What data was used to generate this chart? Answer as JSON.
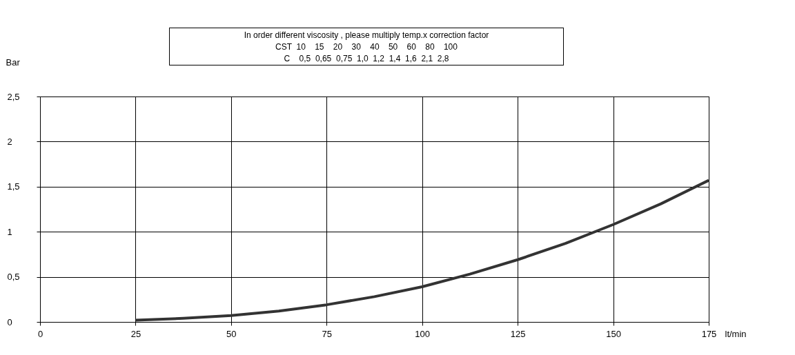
{
  "chart_data": {
    "type": "line",
    "xlabel": "lt/min",
    "ylabel": "Bar",
    "annotations": [
      "In order different viscosity , please multiply temp.x correction factor",
      "CST  10    15    20    30    40    50    60    80    100",
      "C    0,5  0,65  0,75  1,0  1,2  1,4  1,6  2,1  2,8"
    ],
    "x": [
      25,
      37.5,
      50,
      62.5,
      75,
      87.5,
      100,
      112.5,
      125,
      137.5,
      150,
      162.5,
      175
    ],
    "series": [
      {
        "color": "#333333",
        "values": [
          0.02,
          0.04,
          0.07,
          0.12,
          0.19,
          0.28,
          0.39,
          0.53,
          0.69,
          0.87,
          1.08,
          1.31,
          1.57
        ]
      }
    ],
    "xlim": [
      0,
      175
    ],
    "xticks": [
      0,
      25,
      50,
      75,
      100,
      125,
      150,
      175
    ],
    "ylim": [
      0,
      2.5
    ],
    "yticks": [
      0,
      {
        "value": 0.5,
        "label": "0,5"
      },
      1,
      {
        "value": 1.5,
        "label": "1,5"
      },
      2,
      {
        "value": 2.5,
        "label": "2,5"
      }
    ],
    "grid": true,
    "legend": false,
    "marker": "none",
    "line_style": "solid"
  }
}
